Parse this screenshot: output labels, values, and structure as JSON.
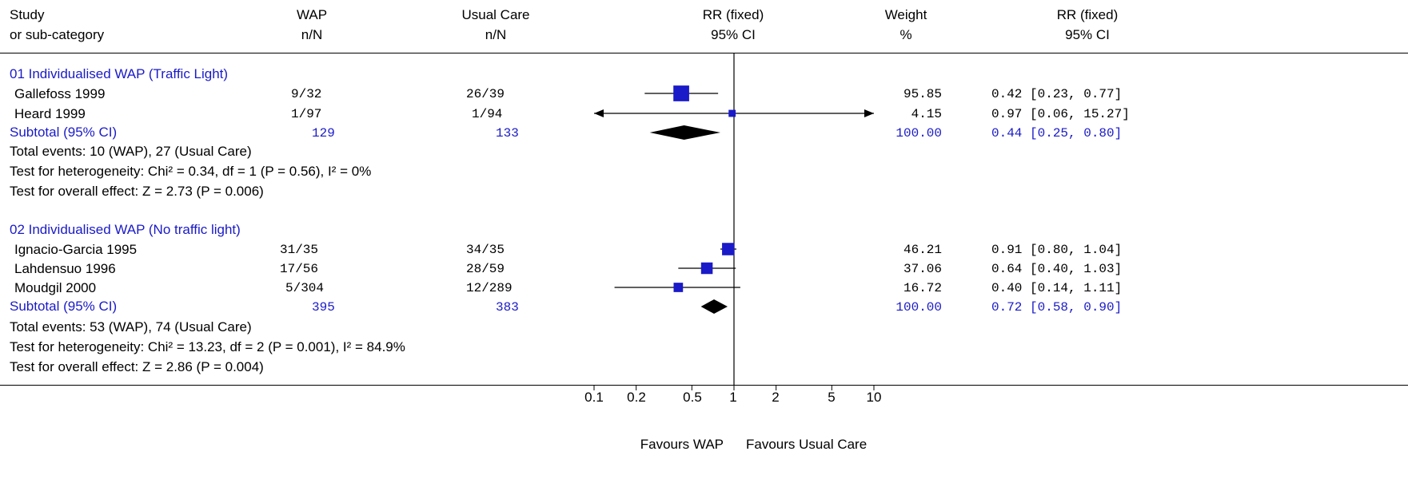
{
  "headers": {
    "study": [
      "Study",
      "or sub-category"
    ],
    "wap": [
      "WAP",
      "n/N"
    ],
    "usual": [
      "Usual Care",
      "n/N"
    ],
    "rr_plot": [
      "RR (fixed)",
      "95% CI"
    ],
    "weight": [
      "Weight",
      "%"
    ],
    "rr_text": [
      "RR (fixed)",
      "95% CI"
    ]
  },
  "groups": [
    {
      "title": "01 Individualised WAP (Traffic Light)",
      "studies": [
        {
          "name": "Gallefoss 1999",
          "wap": "9/32",
          "usual": "26/39",
          "weight": "95.85",
          "ci_text": "0.42 [0.23, 0.77]"
        },
        {
          "name": "Heard 1999",
          "wap": "1/97",
          "usual": "1/94",
          "weight": "4.15",
          "ci_text": "0.97 [0.06, 15.27]"
        }
      ],
      "subtotal": {
        "label": "Subtotal (95% CI)",
        "wap": "129",
        "usual": "133",
        "weight": "100.00",
        "ci_text": "0.44 [0.25, 0.80]"
      },
      "notes": [
        "Total events: 10 (WAP), 27 (Usual Care)",
        "Test for heterogeneity: Chi² = 0.34, df = 1 (P = 0.56), I² = 0%",
        "Test for overall effect: Z = 2.73 (P = 0.006)"
      ]
    },
    {
      "title": "02 Individualised WAP (No traffic light)",
      "studies": [
        {
          "name": "Ignacio-Garcia 1995",
          "wap": "31/35",
          "usual": "34/35",
          "weight": "46.21",
          "ci_text": "0.91 [0.80, 1.04]"
        },
        {
          "name": "Lahdensuo 1996",
          "wap": "17/56",
          "usual": "28/59",
          "weight": "37.06",
          "ci_text": "0.64 [0.40, 1.03]"
        },
        {
          "name": "Moudgil 2000",
          "wap": "5/304",
          "usual": "12/289",
          "weight": "16.72",
          "ci_text": "0.40 [0.14, 1.11]"
        }
      ],
      "subtotal": {
        "label": "Subtotal (95% CI)",
        "wap": "395",
        "usual": "383",
        "weight": "100.00",
        "ci_text": "0.72 [0.58, 0.90]"
      },
      "notes": [
        "Total events: 53 (WAP), 74 (Usual Care)",
        "Test for heterogeneity: Chi² = 13.23, df = 2 (P = 0.001), I² = 84.9%",
        "Test for overall effect: Z = 2.86 (P = 0.004)"
      ]
    }
  ],
  "axis": {
    "ticks": [
      "0.1",
      "0.2",
      "0.5",
      "1",
      "2",
      "5",
      "10"
    ],
    "favours_left": "Favours WAP",
    "favours_right": "Favours Usual Care"
  },
  "colors": {
    "series": "#1a1ac8",
    "summary": "#000000",
    "group_title": "#1a1ac8"
  },
  "chart_data": {
    "type": "forest",
    "scale": "log",
    "xlim": [
      0.1,
      10
    ],
    "ticks": [
      0.1,
      0.2,
      0.5,
      1,
      2,
      5,
      10
    ],
    "null_line": 1,
    "series": [
      {
        "group": "01 Individualised WAP (Traffic Light)",
        "study": "Gallefoss 1999",
        "rr": 0.42,
        "lo": 0.23,
        "hi": 0.77,
        "weight": 95.85,
        "marker": "square"
      },
      {
        "group": "01 Individualised WAP (Traffic Light)",
        "study": "Heard 1999",
        "rr": 0.97,
        "lo": 0.06,
        "hi": 15.27,
        "weight": 4.15,
        "marker": "square"
      },
      {
        "group": "01 Individualised WAP (Traffic Light)",
        "study": "Subtotal (95% CI)",
        "rr": 0.44,
        "lo": 0.25,
        "hi": 0.8,
        "weight": 100.0,
        "marker": "diamond"
      },
      {
        "group": "02 Individualised WAP (No traffic light)",
        "study": "Ignacio-Garcia 1995",
        "rr": 0.91,
        "lo": 0.8,
        "hi": 1.04,
        "weight": 46.21,
        "marker": "square"
      },
      {
        "group": "02 Individualised WAP (No traffic light)",
        "study": "Lahdensuo 1996",
        "rr": 0.64,
        "lo": 0.4,
        "hi": 1.03,
        "weight": 37.06,
        "marker": "square"
      },
      {
        "group": "02 Individualised WAP (No traffic light)",
        "study": "Moudgil 2000",
        "rr": 0.4,
        "lo": 0.14,
        "hi": 1.11,
        "weight": 16.72,
        "marker": "square"
      },
      {
        "group": "02 Individualised WAP (No traffic light)",
        "study": "Subtotal (95% CI)",
        "rr": 0.72,
        "lo": 0.58,
        "hi": 0.9,
        "weight": 100.0,
        "marker": "diamond"
      }
    ]
  }
}
